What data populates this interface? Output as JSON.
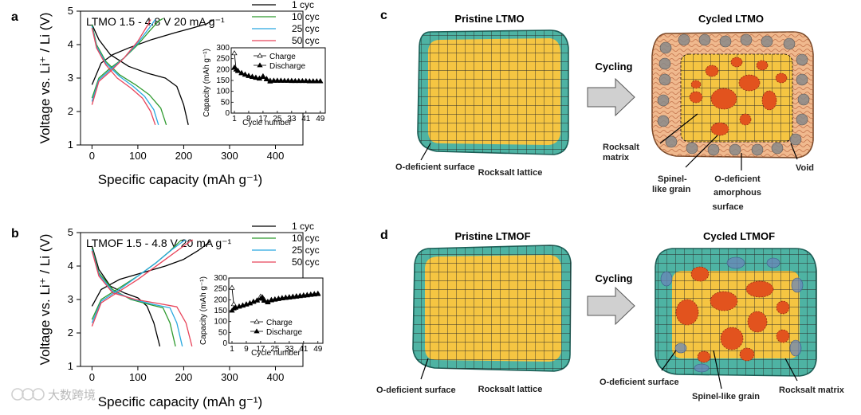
{
  "watermark": "大数跨境",
  "chart_data": [
    {
      "type": "line",
      "panel": "a",
      "condition": "LTMO  1.5 - 4.8 V  20 mA g⁻¹",
      "xlabel": "Specific capacity (mAh g⁻¹)",
      "ylabel": "Voltage vs. Li⁺ / Li (V)",
      "xlim": [
        -25,
        460
      ],
      "ylim": [
        1,
        5
      ],
      "xticks": [
        "0",
        "100",
        "200",
        "300",
        "400"
      ],
      "yticks": [
        "1",
        "2",
        "3",
        "4",
        "5"
      ],
      "series": [
        {
          "name": "1 cyc",
          "color": "#000000",
          "charge": [
            [
              0,
              2.8
            ],
            [
              20,
              3.45
            ],
            [
              45,
              3.7
            ],
            [
              80,
              3.9
            ],
            [
              130,
              4.15
            ],
            [
              180,
              4.35
            ],
            [
              220,
              4.5
            ],
            [
              250,
              4.62
            ],
            [
              265,
              4.75
            ]
          ],
          "discharge": [
            [
              0,
              4.6
            ],
            [
              15,
              4.15
            ],
            [
              40,
              3.7
            ],
            [
              80,
              3.35
            ],
            [
              120,
              3.15
            ],
            [
              160,
              3.0
            ],
            [
              185,
              2.75
            ],
            [
              200,
              2.2
            ],
            [
              210,
              1.6
            ]
          ]
        },
        {
          "name": "10 cyc",
          "color": "#2e9a2e",
          "charge": [
            [
              0,
              2.4
            ],
            [
              15,
              3.0
            ],
            [
              40,
              3.3
            ],
            [
              70,
              3.6
            ],
            [
              100,
              4.0
            ],
            [
              125,
              4.4
            ],
            [
              145,
              4.7
            ],
            [
              155,
              4.78
            ]
          ],
          "discharge": [
            [
              0,
              4.6
            ],
            [
              10,
              4.0
            ],
            [
              30,
              3.5
            ],
            [
              60,
              3.1
            ],
            [
              95,
              2.8
            ],
            [
              125,
              2.5
            ],
            [
              150,
              2.1
            ],
            [
              162,
              1.6
            ]
          ]
        },
        {
          "name": "25 cyc",
          "color": "#29a8e0",
          "charge": [
            [
              0,
              2.3
            ],
            [
              15,
              2.95
            ],
            [
              40,
              3.25
            ],
            [
              70,
              3.6
            ],
            [
              100,
              4.05
            ],
            [
              125,
              4.5
            ],
            [
              138,
              4.75
            ]
          ],
          "discharge": [
            [
              0,
              4.55
            ],
            [
              10,
              3.95
            ],
            [
              30,
              3.45
            ],
            [
              60,
              3.05
            ],
            [
              90,
              2.75
            ],
            [
              115,
              2.45
            ],
            [
              135,
              2.05
            ],
            [
              145,
              1.6
            ]
          ]
        },
        {
          "name": "50 cyc",
          "color": "#e8445a",
          "charge": [
            [
              0,
              2.2
            ],
            [
              15,
              2.9
            ],
            [
              40,
              3.2
            ],
            [
              70,
              3.6
            ],
            [
              100,
              4.1
            ],
            [
              120,
              4.55
            ],
            [
              128,
              4.75
            ]
          ],
          "discharge": [
            [
              0,
              4.5
            ],
            [
              10,
              3.9
            ],
            [
              30,
              3.4
            ],
            [
              55,
              3.0
            ],
            [
              85,
              2.7
            ],
            [
              110,
              2.4
            ],
            [
              128,
              2.0
            ],
            [
              138,
              1.6
            ]
          ]
        }
      ],
      "inset": {
        "type": "scatter",
        "xlabel": "Cycle number",
        "ylabel": "Capacity (mAh g⁻¹)",
        "xlim": [
          1,
          50
        ],
        "ylim": [
          0,
          300
        ],
        "xticks": [
          "1",
          "9",
          "17",
          "25",
          "33",
          "41",
          "49"
        ],
        "yticks": [
          "0",
          "50",
          "100",
          "150",
          "200",
          "250",
          "300"
        ],
        "legend": [
          "Charge",
          "Discharge"
        ],
        "charge": [
          [
            1,
            275
          ],
          [
            2,
            200
          ],
          [
            3,
            195
          ],
          [
            5,
            185
          ],
          [
            7,
            178
          ],
          [
            9,
            172
          ],
          [
            11,
            168
          ],
          [
            13,
            164
          ],
          [
            15,
            160
          ],
          [
            17,
            170
          ],
          [
            19,
            158
          ],
          [
            21,
            150
          ],
          [
            23,
            150
          ],
          [
            25,
            150
          ],
          [
            27,
            150
          ],
          [
            29,
            149
          ],
          [
            31,
            149
          ],
          [
            33,
            149
          ],
          [
            35,
            148
          ],
          [
            37,
            148
          ],
          [
            39,
            148
          ],
          [
            41,
            148
          ],
          [
            43,
            147
          ],
          [
            45,
            147
          ],
          [
            47,
            147
          ],
          [
            49,
            147
          ]
        ],
        "discharge": [
          [
            1,
            210
          ],
          [
            2,
            200
          ],
          [
            3,
            193
          ],
          [
            5,
            183
          ],
          [
            7,
            176
          ],
          [
            9,
            170
          ],
          [
            11,
            166
          ],
          [
            13,
            162
          ],
          [
            15,
            158
          ],
          [
            17,
            166
          ],
          [
            19,
            155
          ],
          [
            21,
            145
          ],
          [
            23,
            148
          ],
          [
            25,
            148
          ],
          [
            27,
            148
          ],
          [
            29,
            148
          ],
          [
            31,
            148
          ],
          [
            33,
            147
          ],
          [
            35,
            147
          ],
          [
            37,
            147
          ],
          [
            39,
            147
          ],
          [
            41,
            147
          ],
          [
            43,
            146
          ],
          [
            45,
            146
          ],
          [
            47,
            146
          ],
          [
            49,
            146
          ]
        ]
      }
    },
    {
      "type": "line",
      "panel": "b",
      "condition": "LTMOF  1.5 - 4.8 V  20 mA g⁻¹",
      "xlabel": "Specific capacity (mAh g⁻¹)",
      "ylabel": "Voltage vs. Li⁺ / Li (V)",
      "xlim": [
        -25,
        460
      ],
      "ylim": [
        1,
        5
      ],
      "xticks": [
        "0",
        "100",
        "200",
        "300",
        "400"
      ],
      "yticks": [
        "1",
        "2",
        "3",
        "4",
        "5"
      ],
      "series": [
        {
          "name": "1 cyc",
          "color": "#000000",
          "charge": [
            [
              0,
              2.8
            ],
            [
              20,
              3.3
            ],
            [
              60,
              3.6
            ],
            [
              110,
              3.8
            ],
            [
              160,
              4.0
            ],
            [
              200,
              4.2
            ],
            [
              230,
              4.45
            ],
            [
              250,
              4.65
            ],
            [
              258,
              4.75
            ]
          ],
          "discharge": [
            [
              0,
              4.6
            ],
            [
              15,
              3.9
            ],
            [
              40,
              3.4
            ],
            [
              70,
              3.2
            ],
            [
              100,
              3.05
            ],
            [
              120,
              2.8
            ],
            [
              135,
              2.3
            ],
            [
              148,
              1.6
            ]
          ]
        },
        {
          "name": "10 cyc",
          "color": "#2e9a2e",
          "charge": [
            [
              0,
              2.4
            ],
            [
              20,
              3.0
            ],
            [
              60,
              3.35
            ],
            [
              100,
              3.7
            ],
            [
              140,
              4.1
            ],
            [
              170,
              4.45
            ],
            [
              190,
              4.72
            ],
            [
              195,
              4.78
            ]
          ],
          "discharge": [
            [
              0,
              4.55
            ],
            [
              15,
              3.8
            ],
            [
              45,
              3.3
            ],
            [
              85,
              3.0
            ],
            [
              125,
              2.85
            ],
            [
              155,
              2.75
            ],
            [
              170,
              2.3
            ],
            [
              182,
              1.6
            ]
          ]
        },
        {
          "name": "25 cyc",
          "color": "#29a8e0",
          "charge": [
            [
              0,
              2.3
            ],
            [
              20,
              2.95
            ],
            [
              60,
              3.3
            ],
            [
              100,
              3.7
            ],
            [
              140,
              4.1
            ],
            [
              175,
              4.5
            ],
            [
              200,
              4.75
            ],
            [
              205,
              4.78
            ]
          ],
          "discharge": [
            [
              0,
              4.5
            ],
            [
              15,
              3.75
            ],
            [
              45,
              3.25
            ],
            [
              90,
              3.0
            ],
            [
              135,
              2.85
            ],
            [
              170,
              2.75
            ],
            [
              185,
              2.3
            ],
            [
              197,
              1.6
            ]
          ]
        },
        {
          "name": "50 cyc",
          "color": "#e8445a",
          "charge": [
            [
              0,
              2.2
            ],
            [
              20,
              2.9
            ],
            [
              60,
              3.25
            ],
            [
              100,
              3.6
            ],
            [
              150,
              4.1
            ],
            [
              190,
              4.5
            ],
            [
              215,
              4.75
            ],
            [
              220,
              4.78
            ]
          ],
          "discharge": [
            [
              0,
              4.45
            ],
            [
              15,
              3.7
            ],
            [
              45,
              3.2
            ],
            [
              95,
              3.0
            ],
            [
              145,
              2.88
            ],
            [
              185,
              2.78
            ],
            [
              205,
              2.3
            ],
            [
              218,
              1.6
            ]
          ]
        }
      ],
      "inset": {
        "type": "scatter",
        "xlabel": "Cycle number",
        "ylabel": "Capacity (mAh g⁻¹)",
        "xlim": [
          1,
          50
        ],
        "ylim": [
          0,
          300
        ],
        "xticks": [
          "1",
          "9",
          "17",
          "25",
          "33",
          "41",
          "49"
        ],
        "yticks": [
          "0",
          "50",
          "100",
          "150",
          "200",
          "250",
          "300"
        ],
        "legend": [
          "Charge",
          "Discharge"
        ],
        "charge": [
          [
            1,
            255
          ],
          [
            2,
            180
          ],
          [
            3,
            165
          ],
          [
            5,
            170
          ],
          [
            7,
            175
          ],
          [
            9,
            180
          ],
          [
            11,
            185
          ],
          [
            13,
            192
          ],
          [
            15,
            198
          ],
          [
            17,
            215
          ],
          [
            18,
            212
          ],
          [
            19,
            200
          ],
          [
            21,
            192
          ],
          [
            23,
            200
          ],
          [
            25,
            203
          ],
          [
            27,
            206
          ],
          [
            29,
            209
          ],
          [
            31,
            211
          ],
          [
            33,
            213
          ],
          [
            35,
            215
          ],
          [
            37,
            217
          ],
          [
            39,
            219
          ],
          [
            41,
            221
          ],
          [
            43,
            223
          ],
          [
            45,
            225
          ],
          [
            47,
            227
          ],
          [
            49,
            229
          ]
        ],
        "discharge": [
          [
            1,
            150
          ],
          [
            2,
            160
          ],
          [
            3,
            163
          ],
          [
            5,
            168
          ],
          [
            7,
            173
          ],
          [
            9,
            178
          ],
          [
            11,
            183
          ],
          [
            13,
            190
          ],
          [
            15,
            196
          ],
          [
            17,
            205
          ],
          [
            18,
            208
          ],
          [
            19,
            195
          ],
          [
            21,
            188
          ],
          [
            23,
            197
          ],
          [
            25,
            200
          ],
          [
            27,
            203
          ],
          [
            29,
            206
          ],
          [
            31,
            208
          ],
          [
            33,
            210
          ],
          [
            35,
            212
          ],
          [
            37,
            214
          ],
          [
            39,
            216
          ],
          [
            41,
            218
          ],
          [
            43,
            220
          ],
          [
            45,
            222
          ],
          [
            47,
            224
          ],
          [
            49,
            226
          ]
        ]
      }
    }
  ],
  "schematics": {
    "c": {
      "label": "c",
      "pristine_title": "Pristine LTMO",
      "cycled_title": "Cycled LTMO",
      "arrow_label": "Cycling",
      "annotations": {
        "o_deficient_surface": "O-deficient surface",
        "rocksalt_lattice": "Rocksalt lattice",
        "rocksalt_matrix_1": "Rocksalt",
        "rocksalt_matrix_2": "matrix",
        "spinel_1": "Spinel-",
        "spinel_2": "like grain",
        "amorph_1": "O-deficient",
        "amorph_2": "amorphous",
        "amorph_3": "surface",
        "void": "Void"
      }
    },
    "d": {
      "label": "d",
      "pristine_title": "Pristine LTMOF",
      "cycled_title": "Cycled LTMOF",
      "arrow_label": "Cycling",
      "annotations": {
        "o_deficient_surface_left": "O-deficient surface",
        "rocksalt_lattice": "Rocksalt lattice",
        "o_deficient_surface_right": "O-deficient surface",
        "spinel_grain": "Spinel-like grain",
        "rocksalt_matrix": "Rocksalt matrix"
      }
    }
  }
}
